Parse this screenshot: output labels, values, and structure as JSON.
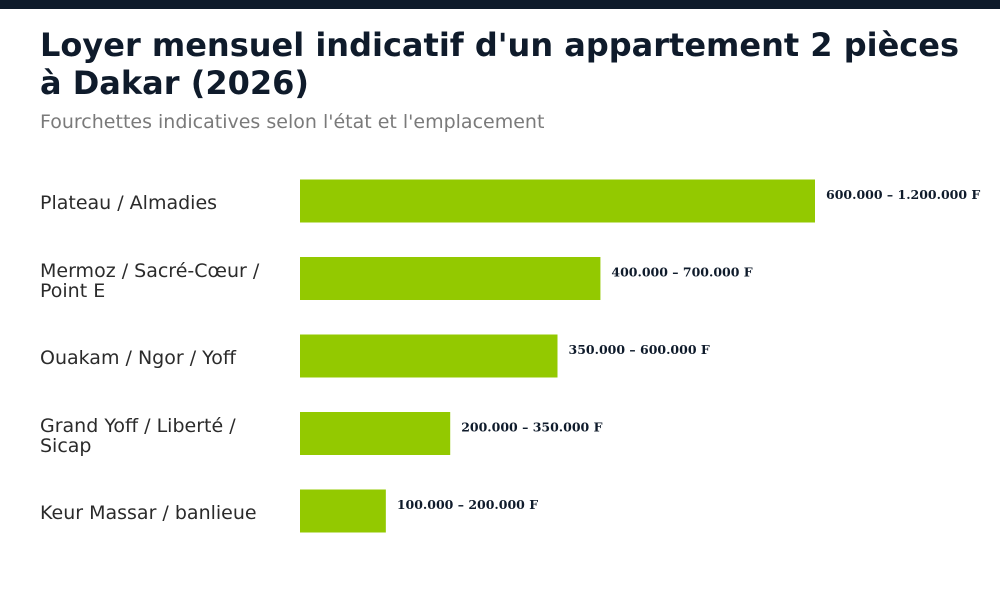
{
  "header": {
    "title": "Loyer mensuel indicatif d'un appartement 2 pièces à Dakar (2026)",
    "subtitle": "Fourchettes indicatives selon l'état et l'emplacement"
  },
  "colors": {
    "bar": "#93c900",
    "top_bar": "#0f1b2b",
    "title": "#0f1b2b",
    "label": "#2b2b2b",
    "value_label": "#0f1b2b"
  },
  "chart_data": {
    "type": "bar",
    "orientation": "horizontal",
    "categories": [
      "Plateau / Almadies",
      "Mermoz / Sacré-Cœur / Point E",
      "Ouakam / Ngor / Yoff",
      "Grand Yoff / Liberté / Sicap",
      "Keur Massar / banlieue"
    ],
    "values": [
      1200000,
      700000,
      600000,
      350000,
      200000
    ],
    "ranges": [
      [
        600000,
        1200000
      ],
      [
        400000,
        700000
      ],
      [
        350000,
        600000
      ],
      [
        200000,
        350000
      ],
      [
        100000,
        200000
      ]
    ],
    "data_labels": [
      "600.000 – 1.200.000 F",
      "400.000 – 700.000 F",
      "350.000 – 600.000 F",
      "200.000 – 350.000 F",
      "100.000 – 200.000 F"
    ],
    "title": "Loyer mensuel indicatif d'un appartement 2 pièces à Dakar (2026)",
    "subtitle": "Fourchettes indicatives selon l'état et l'emplacement",
    "xlim": [
      0,
      1200000
    ],
    "grid": false,
    "legend": "none"
  }
}
